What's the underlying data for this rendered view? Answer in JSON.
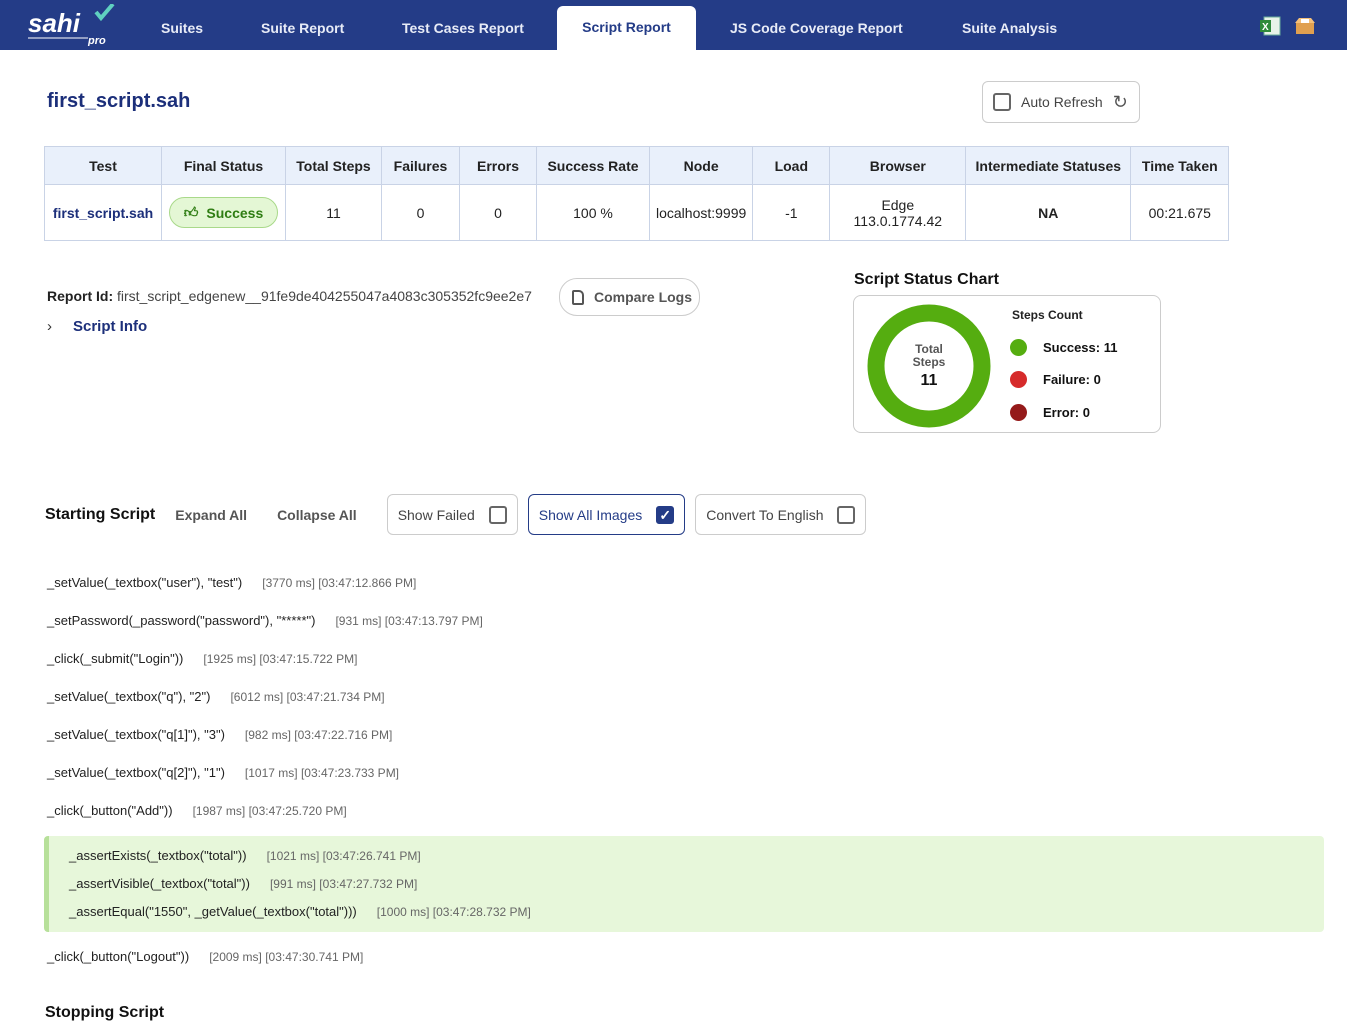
{
  "nav": {
    "logo": "sahi pro",
    "tabs": [
      "Suites",
      "Suite Report",
      "Test Cases Report",
      "Script Report",
      "JS Code Coverage Report",
      "Suite Analysis"
    ],
    "active": "Script Report",
    "icons": [
      "excel-icon",
      "package-icon"
    ]
  },
  "page": {
    "title": "first_script.sah",
    "auto_refresh": "Auto Refresh"
  },
  "table": {
    "headers": [
      "Test",
      "Final Status",
      "Total Steps",
      "Failures",
      "Errors",
      "Success Rate",
      "Node",
      "Load",
      "Browser",
      "Intermediate Statuses",
      "Time Taken"
    ],
    "row": {
      "test": "first_script.sah",
      "status": "Success",
      "total_steps": "11",
      "failures": "0",
      "errors": "0",
      "success_rate": "100 %",
      "node": "localhost:9999",
      "load": "-1",
      "browser": "Edge 113.0.1774.42",
      "intermediate": "NA",
      "time": "00:21.675"
    }
  },
  "report": {
    "label": "Report Id:",
    "id": "first_script_edgenew__91fe9de404255047a4083c305352fc9ee2e7",
    "compare_logs": "Compare Logs",
    "script_info": "Script Info"
  },
  "chart": {
    "title": "Script Status Chart",
    "center_label_1": "Total",
    "center_label_2": "Steps",
    "total": "11",
    "legend_title": "Steps Count",
    "items": [
      {
        "label": "Success: 11",
        "value": 11,
        "color": "#55ad10"
      },
      {
        "label": "Failure: 0",
        "value": 0,
        "color": "#d62b2b"
      },
      {
        "label": "Error: 0",
        "value": 0,
        "color": "#951a1a"
      }
    ]
  },
  "controls": {
    "starting": "Starting Script",
    "expand": "Expand All",
    "collapse": "Collapse All",
    "show_failed": "Show Failed",
    "show_failed_checked": false,
    "show_images": "Show All Images",
    "show_images_checked": true,
    "convert": "Convert To English",
    "convert_checked": false
  },
  "steps": [
    {
      "cmd": "_setValue(_textbox(\"user\"), \"test\")",
      "time": "[3770 ms] [03:47:12.866 PM]"
    },
    {
      "cmd": "_setPassword(_password(\"password\"), \"*****\")",
      "time": "[931 ms] [03:47:13.797 PM]"
    },
    {
      "cmd": "_click(_submit(\"Login\"))",
      "time": "[1925 ms] [03:47:15.722 PM]"
    },
    {
      "cmd": "_setValue(_textbox(\"q\"), \"2\")",
      "time": "[6012 ms] [03:47:21.734 PM]"
    },
    {
      "cmd": "_setValue(_textbox(\"q[1]\"), \"3\")",
      "time": "[982 ms] [03:47:22.716 PM]"
    },
    {
      "cmd": "_setValue(_textbox(\"q[2]\"), \"1\")",
      "time": "[1017 ms] [03:47:23.733 PM]"
    },
    {
      "cmd": "_click(_button(\"Add\"))",
      "time": "[1987 ms] [03:47:25.720 PM]"
    },
    {
      "cmd": "_assertExists(_textbox(\"total\"))",
      "time": "[1021 ms] [03:47:26.741 PM]"
    },
    {
      "cmd": "_assertVisible(_textbox(\"total\"))",
      "time": "[991 ms] [03:47:27.732 PM]"
    },
    {
      "cmd": "_assertEqual(\"1550\", _getValue(_textbox(\"total\")))",
      "time": "[1000 ms] [03:47:28.732 PM]"
    },
    {
      "cmd": "_click(_button(\"Logout\"))",
      "time": "[2009 ms] [03:47:30.741 PM]"
    }
  ],
  "stopping": "Stopping Script"
}
